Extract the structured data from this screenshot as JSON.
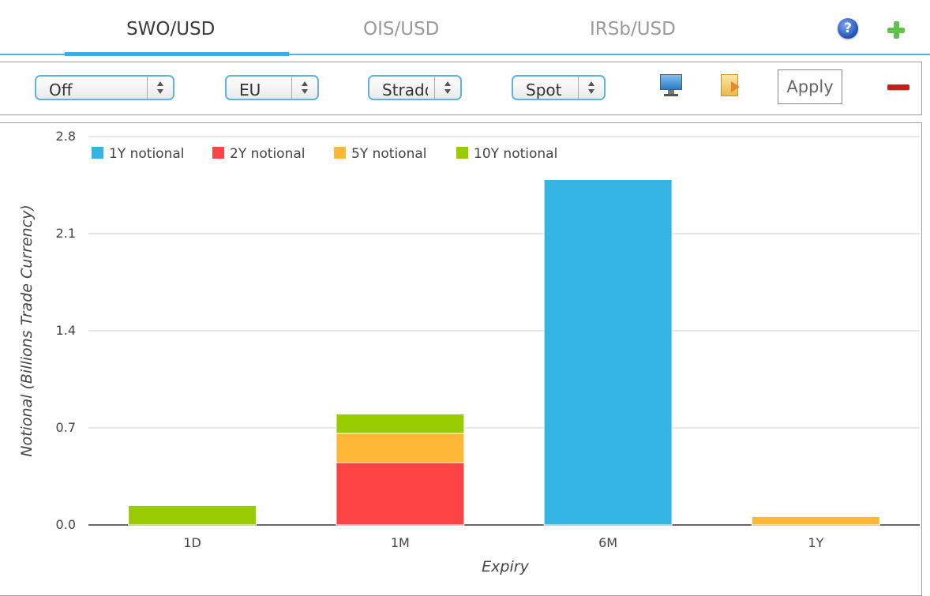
{
  "tabs": [
    {
      "label": "SWO/USD",
      "active": true
    },
    {
      "label": "OIS/USD",
      "active": false
    },
    {
      "label": "IRSb/USD",
      "active": false
    }
  ],
  "header_icons": {
    "help": "question-circle-icon",
    "add": "plus-icon"
  },
  "toolbar": {
    "selects": [
      {
        "value": "Off"
      },
      {
        "value": "EU"
      },
      {
        "value": "Stradd"
      },
      {
        "value": "Spot"
      }
    ],
    "icons": [
      "monitor-icon",
      "note-export-icon"
    ],
    "apply_label": "Apply",
    "remove_icon": "minus-icon"
  },
  "colors": {
    "accent": "#3ab0df",
    "remove": "#c81e1e"
  },
  "chart_data": {
    "type": "bar",
    "stacked": true,
    "categories": [
      "1D",
      "1M",
      "6M",
      "1Y"
    ],
    "series": [
      {
        "name": "1Y notional",
        "color": "#33b4e3",
        "values": [
          0,
          0,
          2.49,
          0
        ]
      },
      {
        "name": "2Y notional",
        "color": "#fd4444",
        "values": [
          0,
          0.45,
          0,
          0
        ]
      },
      {
        "name": "5Y notional",
        "color": "#fdb734",
        "values": [
          0,
          0.21,
          0,
          0.06
        ]
      },
      {
        "name": "10Y notional",
        "color": "#99cc00",
        "values": [
          0.14,
          0.14,
          0,
          0
        ]
      }
    ],
    "xlabel": "Expiry",
    "ylabel": "Notional (Billions Trade Currency)",
    "ylim": [
      0,
      2.8
    ],
    "yticks": [
      "0.0",
      "0.7",
      "1.4",
      "2.1",
      "2.8"
    ],
    "grid": true,
    "legend_position": "top-left"
  }
}
